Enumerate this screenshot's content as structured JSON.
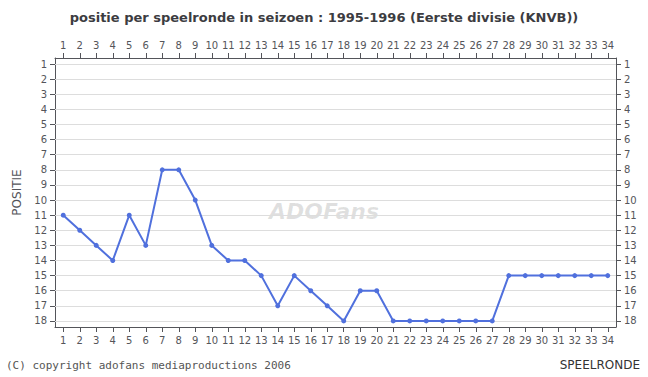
{
  "chart_data": {
    "type": "line",
    "title": "positie per speelronde in seizoen : 1995-1996 (Eerste divisie (KNVB))",
    "xlabel": "SPEELRONDE",
    "ylabel": "POSITIE",
    "annotations": [
      "(C) copyright adofans mediaproductions 2006",
      "ADOFans"
    ],
    "x": [
      1,
      2,
      3,
      4,
      5,
      6,
      7,
      8,
      9,
      10,
      11,
      12,
      13,
      14,
      15,
      16,
      17,
      18,
      19,
      20,
      21,
      22,
      23,
      24,
      25,
      26,
      27,
      28,
      29,
      30,
      31,
      32,
      33,
      34
    ],
    "values": [
      11,
      12,
      13,
      14,
      11,
      13,
      8,
      8,
      10,
      13,
      14,
      14,
      15,
      17,
      15,
      16,
      17,
      18,
      16,
      16,
      18,
      18,
      18,
      18,
      18,
      18,
      18,
      15,
      15,
      15,
      15,
      15,
      15,
      15
    ],
    "xlim": [
      0.5,
      34.5
    ],
    "xticks": [
      1,
      2,
      3,
      4,
      5,
      6,
      7,
      8,
      9,
      10,
      11,
      12,
      13,
      14,
      15,
      16,
      17,
      18,
      19,
      20,
      21,
      22,
      23,
      24,
      25,
      26,
      27,
      28,
      29,
      30,
      31,
      32,
      33,
      34
    ],
    "ylim": [
      18.4,
      0.6
    ],
    "yticks": [
      1,
      2,
      3,
      4,
      5,
      6,
      7,
      8,
      9,
      10,
      11,
      12,
      13,
      14,
      15,
      16,
      17,
      18
    ],
    "grid": true,
    "marker": "circle"
  }
}
